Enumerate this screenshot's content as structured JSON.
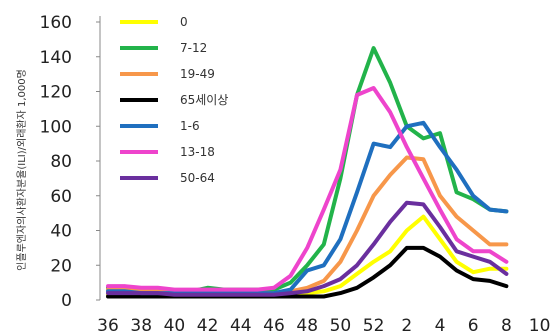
{
  "chart_data": {
    "type": "line",
    "ylabel": "인플루엔자의사환자분율(ILI)/외래환자 1,000명",
    "ylim": [
      0,
      160
    ],
    "yticks": [
      0,
      20,
      40,
      60,
      80,
      100,
      120,
      140,
      160
    ],
    "xticks": [
      "36",
      "38",
      "40",
      "42",
      "44",
      "46",
      "48",
      "50",
      "52",
      "2",
      "4",
      "6",
      "8",
      "10"
    ],
    "grid": false,
    "legend_position": "top-left",
    "x": [
      "36",
      "37",
      "38",
      "39",
      "40",
      "41",
      "42",
      "43",
      "44",
      "45",
      "46",
      "47",
      "48",
      "49",
      "50",
      "51",
      "52",
      "53",
      "1",
      "2",
      "3",
      "4",
      "5",
      "6",
      "7"
    ],
    "series": [
      {
        "name": "0",
        "color": "#ffff00",
        "values": [
          3,
          3,
          3,
          3,
          3,
          3,
          3,
          3,
          3,
          3,
          3,
          3,
          4,
          5,
          8,
          15,
          22,
          28,
          40,
          48,
          35,
          22,
          16,
          18,
          18
        ]
      },
      {
        "name": "7-12",
        "color": "#22b34a",
        "values": [
          7,
          7,
          6,
          6,
          5,
          5,
          7,
          6,
          6,
          6,
          6,
          10,
          20,
          32,
          70,
          118,
          145,
          125,
          100,
          93,
          96,
          62,
          58,
          52,
          51
        ]
      },
      {
        "name": "19-49",
        "color": "#f7974a",
        "values": [
          6,
          6,
          5,
          5,
          4,
          4,
          4,
          4,
          4,
          4,
          4,
          5,
          7,
          11,
          22,
          40,
          60,
          72,
          82,
          81,
          60,
          48,
          40,
          32,
          32
        ]
      },
      {
        "name": "65세이상",
        "color": "#000000",
        "values": [
          2,
          2,
          2,
          2,
          2,
          2,
          2,
          2,
          2,
          2,
          2,
          2,
          2,
          2,
          4,
          7,
          13,
          20,
          30,
          30,
          25,
          17,
          12,
          11,
          8
        ]
      },
      {
        "name": "1-6",
        "color": "#1f6fbf",
        "values": [
          5,
          5,
          4,
          4,
          4,
          4,
          4,
          4,
          4,
          4,
          4,
          6,
          17,
          20,
          35,
          62,
          90,
          88,
          100,
          102,
          88,
          75,
          60,
          52,
          51
        ]
      },
      {
        "name": "13-18",
        "color": "#ee44cc",
        "values": [
          8,
          8,
          7,
          7,
          6,
          6,
          6,
          6,
          6,
          6,
          7,
          14,
          30,
          52,
          75,
          118,
          122,
          108,
          88,
          70,
          52,
          35,
          28,
          28,
          22
        ]
      },
      {
        "name": "50-64",
        "color": "#6a2f9e",
        "values": [
          4,
          4,
          4,
          4,
          3,
          3,
          3,
          3,
          3,
          3,
          3,
          4,
          5,
          8,
          12,
          20,
          32,
          45,
          56,
          55,
          42,
          28,
          25,
          22,
          15
        ]
      }
    ]
  }
}
